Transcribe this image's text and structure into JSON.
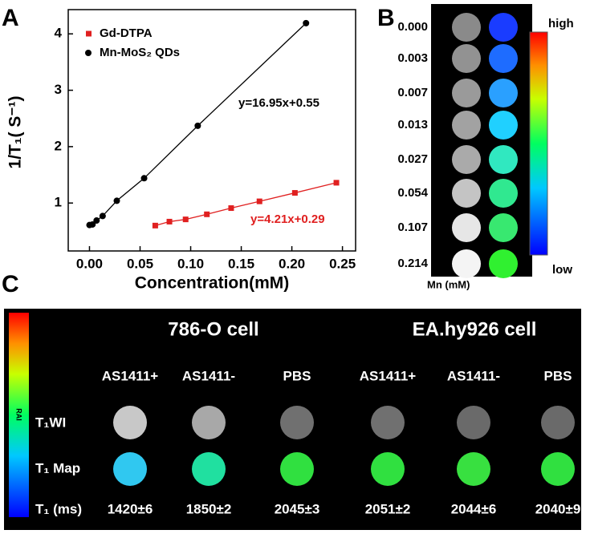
{
  "panel_labels": [
    "A",
    "B",
    "C"
  ],
  "chart_data": {
    "type": "scatter",
    "x_label": "Concentration(mM)",
    "y_label": "1/T₁( S⁻¹)",
    "xlim": [
      -0.021,
      0.263
    ],
    "ylim": [
      0.15,
      4.43
    ],
    "xticks": [
      {
        "value": 0,
        "label": "0.00"
      },
      {
        "value": 0.05,
        "label": "0.05"
      },
      {
        "value": 0.1,
        "label": "0.10"
      },
      {
        "value": 0.15,
        "label": "0.15"
      },
      {
        "value": 0.2,
        "label": "0.20"
      },
      {
        "value": 0.25,
        "label": "0.25"
      }
    ],
    "yticks": [
      1,
      2,
      3,
      4
    ],
    "series": [
      {
        "name": "Gd-DTPA",
        "color": "#e02020",
        "marker": "square",
        "x": [
          0.065,
          0.079,
          0.095,
          0.116,
          0.14,
          0.168,
          0.203,
          0.244
        ],
        "values": [
          0.6,
          0.67,
          0.71,
          0.8,
          0.91,
          1.03,
          1.18,
          1.36
        ]
      },
      {
        "name": "Mn-MoS₂ QDs",
        "color": "#000000",
        "marker": "circle",
        "x": [
          0,
          0.003,
          0.007,
          0.013,
          0.027,
          0.054,
          0.107,
          0.214
        ],
        "values": [
          0.61,
          0.62,
          0.69,
          0.77,
          1.04,
          1.44,
          2.37,
          4.19
        ]
      }
    ],
    "annotations": [
      "y=16.95x+0.55",
      "y=4.21x+0.29"
    ]
  },
  "panel_b": {
    "concentrations": [
      "0.000",
      "0.003",
      "0.007",
      "0.013",
      "0.027",
      "0.054",
      "0.107",
      "0.214"
    ],
    "colorbar_high": "high",
    "colorbar_low": "low",
    "unit": "Mn (mM)"
  },
  "panel_c": {
    "groups": [
      "786-O cell",
      "EA.hy926 cell"
    ],
    "columns": [
      "AS1411+",
      "AS1411-",
      "PBS",
      "AS1411+",
      "AS1411-",
      "PBS"
    ],
    "rows": [
      "T₁WI",
      "T₁ Map",
      "T₁ (ms)"
    ],
    "values": [
      "1420±6",
      "1850±2",
      "2045±3",
      "2051±2",
      "2044±6",
      "2040±9"
    ],
    "colorbar_label": "RAI"
  }
}
